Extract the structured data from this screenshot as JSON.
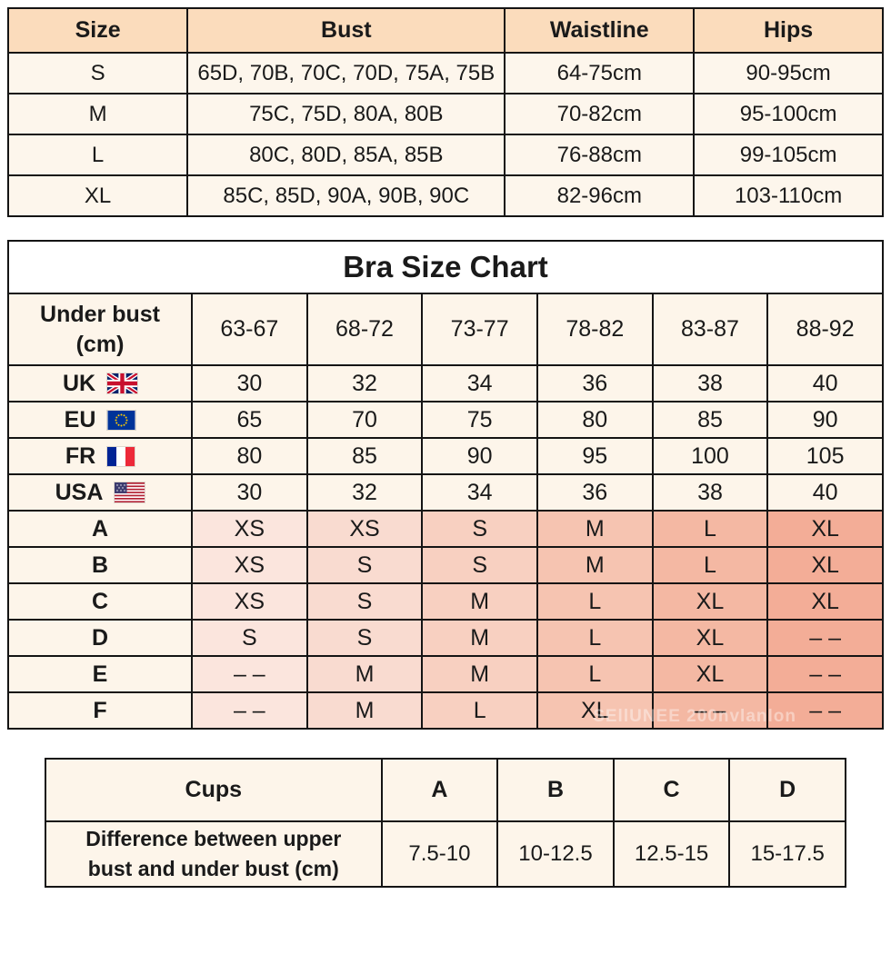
{
  "size_table": {
    "headers": [
      "Size",
      "Bust",
      "Waistline",
      "Hips"
    ],
    "rows": [
      [
        "S",
        "65D, 70B, 70C, 70D, 75A, 75B",
        "64-75cm",
        "90-95cm"
      ],
      [
        "M",
        "75C, 75D, 80A, 80B",
        "70-82cm",
        "95-100cm"
      ],
      [
        "L",
        "80C, 80D, 85A, 85B",
        "76-88cm",
        "99-105cm"
      ],
      [
        "XL",
        "85C, 85D, 90A, 90B, 90C",
        "82-96cm",
        "103-110cm"
      ]
    ],
    "colors": {
      "header_bg": "#fbdcbc",
      "body_bg": "#fdf6ec"
    }
  },
  "bra_chart": {
    "title": "Bra Size Chart",
    "row_header_line1": "Under bust",
    "row_header_line2": "(cm)",
    "col_headers": [
      "63-67",
      "68-72",
      "73-77",
      "78-82",
      "83-87",
      "88-92"
    ],
    "region_rows": [
      {
        "label": "UK",
        "flag": "uk-flag-icon",
        "values": [
          "30",
          "32",
          "34",
          "36",
          "38",
          "40"
        ]
      },
      {
        "label": "EU",
        "flag": "eu-flag-icon",
        "values": [
          "65",
          "70",
          "75",
          "80",
          "85",
          "90"
        ]
      },
      {
        "label": "FR",
        "flag": "fr-flag-icon",
        "values": [
          "80",
          "85",
          "90",
          "95",
          "100",
          "105"
        ]
      },
      {
        "label": "USA",
        "flag": "usa-flag-icon",
        "values": [
          "30",
          "32",
          "34",
          "36",
          "38",
          "40"
        ]
      }
    ],
    "cup_rows": [
      {
        "label": "A",
        "values": [
          "XS",
          "XS",
          "S",
          "M",
          "L",
          "XL"
        ]
      },
      {
        "label": "B",
        "values": [
          "XS",
          "S",
          "S",
          "M",
          "L",
          "XL"
        ]
      },
      {
        "label": "C",
        "values": [
          "XS",
          "S",
          "M",
          "L",
          "XL",
          "XL"
        ]
      },
      {
        "label": "D",
        "values": [
          "S",
          "S",
          "M",
          "L",
          "XL",
          "– –"
        ]
      },
      {
        "label": "E",
        "values": [
          "– –",
          "M",
          "M",
          "L",
          "XL",
          "– –"
        ]
      },
      {
        "label": "F",
        "values": [
          "– –",
          "M",
          "L",
          "XL",
          "– –",
          "– –"
        ]
      }
    ],
    "column_shades": [
      "#fbe5dd",
      "#f9dbd0",
      "#f8d0c1",
      "#f6c4b1",
      "#f4b8a3",
      "#f3ad97"
    ],
    "colors": {
      "body_bg": "#fdf5ea",
      "title_bg": "#ffffff"
    },
    "watermark": "SEllUNEE 200nvlanlon"
  },
  "cups_table": {
    "header_label": "Cups",
    "cup_headers": [
      "A",
      "B",
      "C",
      "D"
    ],
    "row_label": "Difference between upper bust and under bust (cm)",
    "values": [
      "7.5-10",
      "10-12.5",
      "12.5-15",
      "15-17.5"
    ]
  }
}
